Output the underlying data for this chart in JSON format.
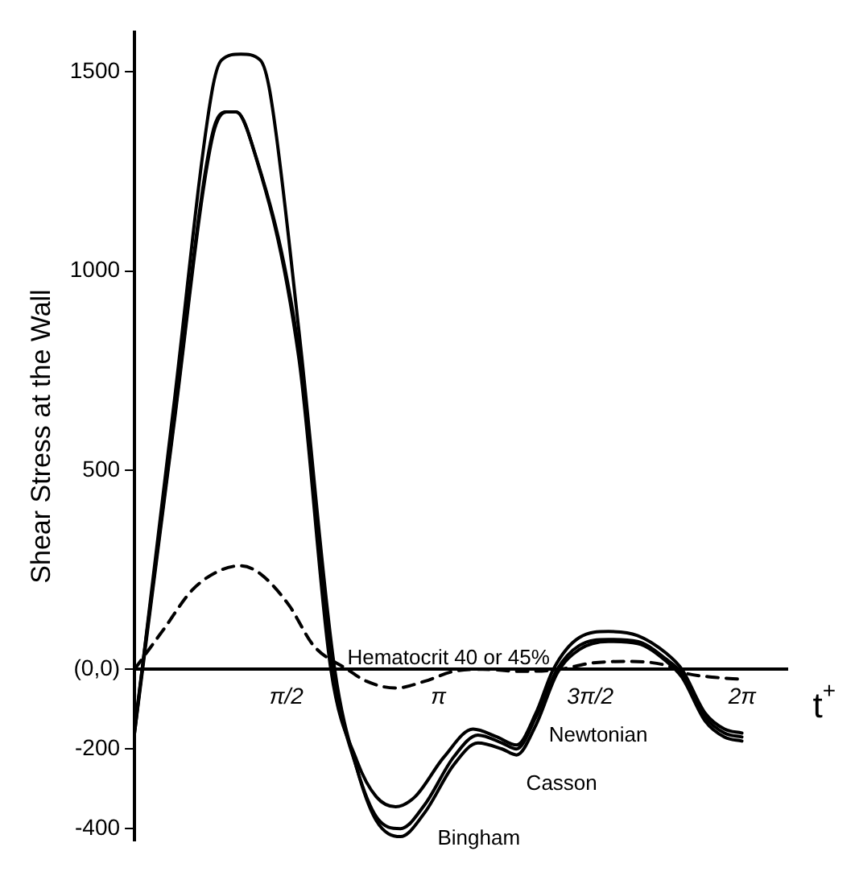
{
  "chart_data": {
    "type": "line",
    "xlabel": "t$^{+}$",
    "ylabel": "Shear Stress at the Wall",
    "xlim": [
      0,
      6.75
    ],
    "ylim": [
      -430,
      1600
    ],
    "xticks": [
      {
        "value": 1.5708,
        "label": "π/2"
      },
      {
        "value": 3.1416,
        "label": "π"
      },
      {
        "value": 4.7124,
        "label": "3π/2"
      },
      {
        "value": 6.2832,
        "label": "2π"
      }
    ],
    "yticks": [
      1500,
      1000,
      500,
      {
        "value": 0,
        "label": "(0,0)"
      },
      -200,
      -400
    ],
    "grid": false,
    "legend": false,
    "marker": "none",
    "series": [
      {
        "name": "Newtonian",
        "color": "#000000",
        "line_style": "solid",
        "x": [
          0,
          0.4,
          0.8,
          0.95,
          1.05,
          1.2,
          1.7,
          2.03,
          2.3,
          2.5,
          2.7,
          2.9,
          3.2,
          3.5,
          3.75,
          3.95,
          4.15,
          4.33,
          4.6,
          4.9,
          5.2,
          5.5,
          5.66,
          5.9,
          6.1,
          6.28
        ],
        "values": [
          -150,
          610,
          1340,
          1400,
          1400,
          1330,
          780,
          0,
          -230,
          -320,
          -345,
          -320,
          -220,
          -150,
          -170,
          -190,
          -110,
          0,
          80,
          95,
          85,
          40,
          0,
          -110,
          -150,
          -160
        ]
      },
      {
        "name": "Casson",
        "color": "#000000",
        "line_style": "solid",
        "x": [
          0,
          0.4,
          0.8,
          0.95,
          1.05,
          1.2,
          1.7,
          2.05,
          2.3,
          2.5,
          2.75,
          3.0,
          3.3,
          3.55,
          3.8,
          3.95,
          4.15,
          4.37,
          4.6,
          4.9,
          5.2,
          5.5,
          5.66,
          5.9,
          6.1,
          6.28
        ],
        "values": [
          -160,
          600,
          1330,
          1400,
          1400,
          1330,
          800,
          0,
          -250,
          -370,
          -400,
          -340,
          -220,
          -165,
          -185,
          -200,
          -120,
          0,
          60,
          75,
          70,
          25,
          -10,
          -120,
          -160,
          -170
        ]
      },
      {
        "name": "Bingham",
        "color": "#000000",
        "line_style": "solid",
        "x": [
          0,
          0.4,
          0.8,
          0.9,
          1.1,
          1.3,
          1.4,
          1.7,
          2.07,
          2.3,
          2.5,
          2.75,
          3.0,
          3.3,
          3.55,
          3.8,
          3.95,
          4.15,
          4.37,
          4.6,
          4.9,
          5.2,
          5.5,
          5.66,
          5.9,
          6.1,
          6.28
        ],
        "values": [
          -160,
          650,
          1450,
          1530,
          1545,
          1530,
          1450,
          850,
          0,
          -250,
          -380,
          -420,
          -360,
          -240,
          -185,
          -200,
          -215,
          -140,
          -10,
          50,
          70,
          65,
          20,
          -20,
          -130,
          -170,
          -180
        ]
      },
      {
        "name": "Hematocrit 40 or 45%",
        "color": "#000000",
        "line_style": "dashed",
        "x": [
          0,
          0.3,
          0.6,
          0.9,
          1.1,
          1.3,
          1.6,
          1.85,
          2.2,
          2.4,
          2.7,
          3.0,
          3.3,
          3.6,
          4.0,
          4.4,
          4.7,
          5.1,
          5.5,
          5.7,
          6.0,
          6.28
        ],
        "values": [
          0,
          100,
          200,
          250,
          260,
          240,
          160,
          60,
          0,
          -30,
          -47,
          -30,
          -5,
          0,
          -5,
          0,
          15,
          20,
          10,
          -10,
          -20,
          -25
        ]
      }
    ]
  }
}
